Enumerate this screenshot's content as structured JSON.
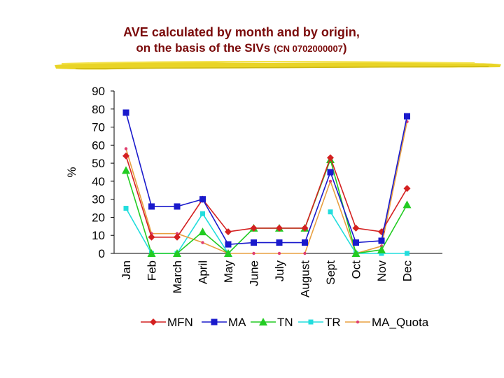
{
  "title": {
    "line1": "AVE calculated by month and by origin,",
    "line2": "on the basis of the SIVs",
    "line2_suffix": "(CN 0702000007",
    "line2_close": ")"
  },
  "chart_data": {
    "type": "line",
    "title": "AVE calculated by month and by origin, on the basis of the SIVs (CN 0702000007)",
    "xlabel": "",
    "ylabel": "%",
    "ylim": [
      0,
      90
    ],
    "yticks": [
      0,
      10,
      20,
      30,
      40,
      50,
      60,
      70,
      80,
      90
    ],
    "grid": false,
    "legend_position": "bottom",
    "categories": [
      "Jan",
      "Feb",
      "March",
      "April",
      "May",
      "June",
      "July",
      "August",
      "Sept",
      "Oct",
      "Nov",
      "Dec"
    ],
    "series": [
      {
        "name": "MFN",
        "color": "#d42020",
        "marker": "diamond",
        "values": [
          54,
          9,
          9,
          30,
          12,
          14,
          14,
          14,
          53,
          14,
          12,
          36
        ]
      },
      {
        "name": "MA",
        "color": "#1a1acc",
        "marker": "square",
        "values": [
          78,
          26,
          26,
          30,
          5,
          6,
          6,
          6,
          45,
          6,
          7,
          76
        ]
      },
      {
        "name": "TN",
        "color": "#22cc22",
        "marker": "triangle",
        "values": [
          46,
          0,
          0,
          12,
          0,
          14,
          14,
          14,
          52,
          0,
          2,
          27
        ]
      },
      {
        "name": "TR",
        "color": "#22dddd",
        "marker": "square-small",
        "values": [
          25,
          0,
          0,
          22,
          0,
          null,
          null,
          null,
          23,
          0,
          0,
          0
        ]
      },
      {
        "name": "MA_Quota",
        "color": "#e8a040",
        "markerColor": "#e04070",
        "marker": "dot",
        "values": [
          58,
          11,
          11,
          6,
          0,
          0,
          0,
          0,
          40,
          0,
          4,
          73
        ]
      }
    ]
  }
}
